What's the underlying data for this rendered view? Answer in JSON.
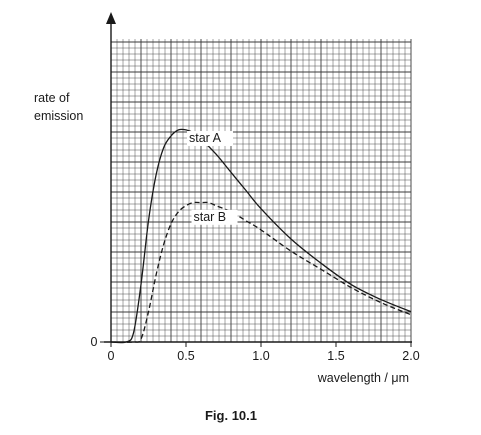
{
  "chart_data": {
    "type": "line",
    "caption": "Fig. 10.1",
    "xlabel": "wavelength / μm",
    "ylabel": "rate of emission",
    "x_ticks": [
      0,
      0.5,
      1.0,
      1.5,
      2.0
    ],
    "x_tick_labels": [
      "0",
      "0.5",
      "1.0",
      "1.5",
      "2.0"
    ],
    "y_ticks": [
      0
    ],
    "y_tick_labels": [
      "0"
    ],
    "xlim": [
      0,
      2.0
    ],
    "ylim": [
      0,
      1.0
    ],
    "grid": true,
    "series": [
      {
        "name": "star A",
        "style": "solid",
        "x": [
          0.1,
          0.15,
          0.2,
          0.25,
          0.3,
          0.35,
          0.4,
          0.45,
          0.5,
          0.55,
          0.6,
          0.7,
          0.8,
          0.9,
          1.0,
          1.2,
          1.4,
          1.6,
          1.8,
          2.0
        ],
        "y": [
          0.0,
          0.03,
          0.19,
          0.4,
          0.55,
          0.64,
          0.68,
          0.7,
          0.7,
          0.69,
          0.67,
          0.62,
          0.56,
          0.5,
          0.44,
          0.34,
          0.26,
          0.19,
          0.14,
          0.1
        ]
      },
      {
        "name": "star B",
        "style": "dashed",
        "x": [
          0.15,
          0.2,
          0.25,
          0.3,
          0.35,
          0.4,
          0.45,
          0.5,
          0.55,
          0.6,
          0.65,
          0.7,
          0.8,
          0.9,
          1.0,
          1.2,
          1.4,
          1.6,
          1.8,
          2.0
        ],
        "y": [
          0.0,
          0.01,
          0.1,
          0.22,
          0.32,
          0.39,
          0.43,
          0.45,
          0.46,
          0.46,
          0.46,
          0.45,
          0.43,
          0.4,
          0.37,
          0.3,
          0.24,
          0.18,
          0.13,
          0.09
        ]
      }
    ]
  }
}
